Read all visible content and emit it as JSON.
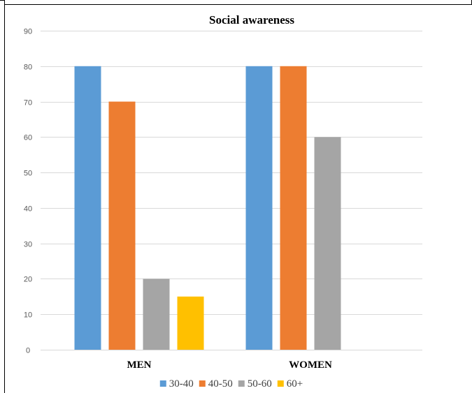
{
  "chart_data": {
    "type": "bar",
    "title": "Social awareness",
    "xlabel": "",
    "ylabel": "",
    "categories": [
      "MEN",
      "WOMEN"
    ],
    "series": [
      {
        "name": "30-40",
        "values": [
          80,
          80
        ],
        "color": "#5B9BD5"
      },
      {
        "name": "40-50",
        "values": [
          70,
          80
        ],
        "color": "#ED7D31"
      },
      {
        "name": "50-60",
        "values": [
          20,
          60
        ],
        "color": "#A5A5A5"
      },
      {
        "name": "60+",
        "values": [
          15,
          null
        ],
        "color": "#FFC000"
      }
    ],
    "ylim": [
      0,
      90
    ],
    "yticks": [
      0,
      10,
      20,
      30,
      40,
      50,
      60,
      70,
      80,
      90
    ],
    "grid": true,
    "legend": "bottom"
  }
}
